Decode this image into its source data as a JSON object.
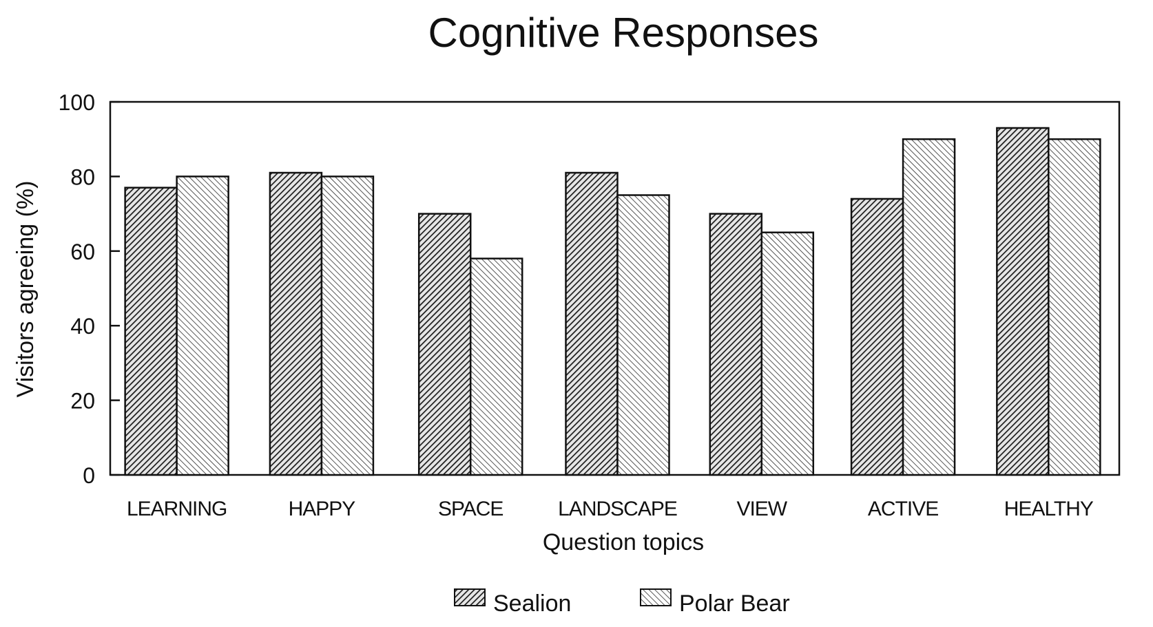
{
  "chart_data": {
    "type": "bar",
    "title": "Cognitive Responses",
    "xlabel": "Question topics",
    "ylabel": "Visitors agreeing (%)",
    "ylim": [
      0,
      100
    ],
    "yticks": [
      0,
      20,
      40,
      60,
      80,
      100
    ],
    "categories": [
      "LEARNING",
      "HAPPY",
      "SPACE",
      "LANDSCAPE",
      "VIEW",
      "ACTIVE",
      "HEALTHY"
    ],
    "series": [
      {
        "name": "Sealion",
        "values": [
          77,
          81,
          70,
          81,
          70,
          74,
          93
        ],
        "pattern": "dense-diagonal-right",
        "color": "#3a3a3a"
      },
      {
        "name": "Polar Bear",
        "values": [
          80,
          80,
          58,
          75,
          65,
          90,
          90
        ],
        "pattern": "light-diagonal-left",
        "color": "#8a8a8a"
      }
    ],
    "grid": false,
    "legend_position": "bottom-center"
  }
}
